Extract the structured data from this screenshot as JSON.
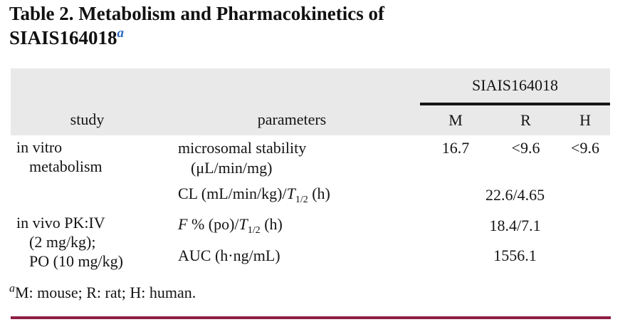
{
  "title": {
    "line1": "Table 2. Metabolism and Pharmacokinetics of",
    "line2": "SIAIS164018",
    "footnote_marker": "a"
  },
  "table": {
    "group_header": "SIAIS164018",
    "columns": {
      "study": "study",
      "parameters": "parameters",
      "m": "M",
      "r": "R",
      "h": "H"
    },
    "rows": {
      "invitro": {
        "study_line1": "in vitro",
        "study_line2": "metabolism",
        "param_line1": "microsomal stability",
        "param_line2": "(μL/min/mg)",
        "m": "16.7",
        "r": "<9.6",
        "h": "<9.6"
      },
      "cl": {
        "param_prefix": "CL (mL/min/kg)/",
        "param_var": "T",
        "param_sub": "1/2",
        "param_suffix": " (h)",
        "value": "22.6/4.65"
      },
      "fpo": {
        "study_line1": "in vivo PK:IV",
        "study_line2": "(2 mg/kg);",
        "study_line3": "PO (10 mg/kg)",
        "param_var1": "F",
        "param_mid": " % (po)/",
        "param_var2": "T",
        "param_sub": "1/2",
        "param_suffix": " (h)",
        "value": "18.4/7.1"
      },
      "auc": {
        "param": "AUC (h·ng/mL)",
        "value": "1556.1"
      }
    }
  },
  "footnote": {
    "marker": "a",
    "text": "M: mouse; R: rat; H: human."
  },
  "colors": {
    "title_marker_blue": "#2f6bc0",
    "header_background": "#e9e9e9",
    "header_rule_black": "#161616",
    "bottom_rule_maroon": "#8e2043"
  }
}
